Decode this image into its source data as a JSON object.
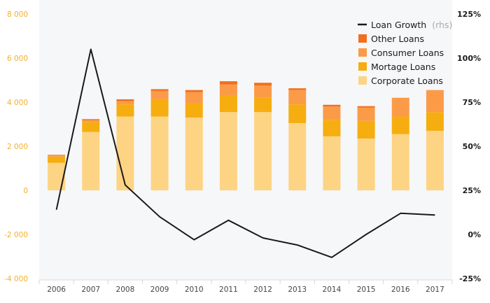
{
  "chart_data": {
    "type": "bar",
    "stacked": true,
    "categories": [
      "2006",
      "2007",
      "2008",
      "2009",
      "2010",
      "2011",
      "2012",
      "2013",
      "2014",
      "2015",
      "2016",
      "2017"
    ],
    "series": [
      {
        "name": "Corporate Loans",
        "color": "#fdd484",
        "values": [
          1250,
          2650,
          3350,
          3350,
          3300,
          3550,
          3550,
          3050,
          2450,
          2350,
          2550,
          2700
        ]
      },
      {
        "name": "Mortage Loans",
        "color": "#f6ad0f",
        "values": [
          280,
          450,
          550,
          780,
          650,
          750,
          650,
          850,
          750,
          800,
          800,
          850
        ]
      },
      {
        "name": "Consumer Loans",
        "color": "#fb9b48",
        "values": [
          50,
          80,
          150,
          380,
          500,
          500,
          550,
          650,
          600,
          600,
          850,
          1000
        ]
      },
      {
        "name": "Other Loans",
        "color": "#f07020",
        "values": [
          30,
          50,
          80,
          80,
          100,
          150,
          130,
          80,
          80,
          70,
          0,
          0
        ]
      }
    ],
    "line": {
      "name": "Loan Growth",
      "suffix": "(rhs)",
      "color": "#1a1a1a",
      "axis": "right",
      "values": [
        14,
        105,
        28,
        10,
        -3,
        8,
        -2,
        -6,
        -13,
        0,
        12,
        11
      ]
    },
    "ylim": [
      -4000,
      8000
    ],
    "yticks": [
      -4000,
      -2000,
      0,
      2000,
      4000,
      6000,
      8000
    ],
    "ytick_labels": [
      "-4 000",
      "-2 000",
      "0",
      "2 000",
      "4 000",
      "6 000",
      "8 000"
    ],
    "y2lim": [
      -25,
      125
    ],
    "y2ticks": [
      -25,
      0,
      25,
      50,
      75,
      100,
      125
    ],
    "y2tick_labels": [
      "-25%",
      "0%",
      "25%",
      "50%",
      "75%",
      "100%",
      "125%"
    ],
    "legend_position": "top-right",
    "grid": false
  }
}
